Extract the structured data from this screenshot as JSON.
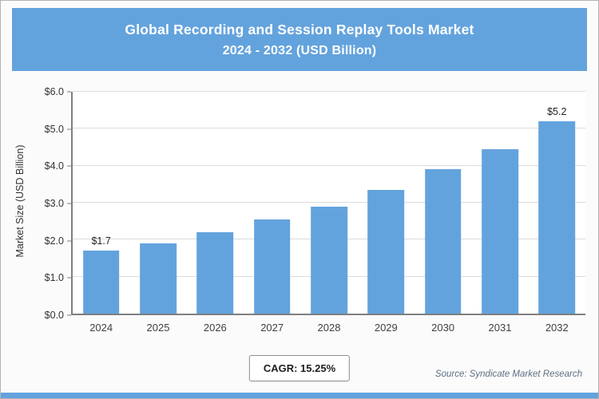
{
  "header": {
    "title_line1": "Global Recording and Session Replay Tools Market",
    "title_line2": "2024 - 2032 (USD Billion)"
  },
  "chart_data": {
    "type": "bar",
    "title": "Global Recording and Session Replay Tools Market 2024 - 2032 (USD Billion)",
    "categories": [
      "2024",
      "2025",
      "2026",
      "2027",
      "2028",
      "2029",
      "2030",
      "2031",
      "2032"
    ],
    "values": [
      1.7,
      1.9,
      2.2,
      2.55,
      2.9,
      3.35,
      3.9,
      4.45,
      5.2
    ],
    "bar_labels": [
      "$1.7",
      "",
      "",
      "",
      "",
      "",
      "",
      "",
      "$5.2"
    ],
    "xlabel": "",
    "ylabel": "Market Size (USD Billion)",
    "ylim": [
      0,
      6
    ],
    "ytick_step": 1,
    "ytick_labels": [
      "$0.0",
      "$1.0",
      "$2.0",
      "$3.0",
      "$4.0",
      "$5.0",
      "$6.0"
    ],
    "grid": "horizontal",
    "legend": "none"
  },
  "footer": {
    "cagr_label": "CAGR: 15.25%",
    "source": "Source: Syndicate Market Research"
  },
  "colors": {
    "accent": "#63a3dd",
    "bar_color": "#63a3dd",
    "header_text": "#ffffff",
    "gridline": "#dcdcdc"
  }
}
